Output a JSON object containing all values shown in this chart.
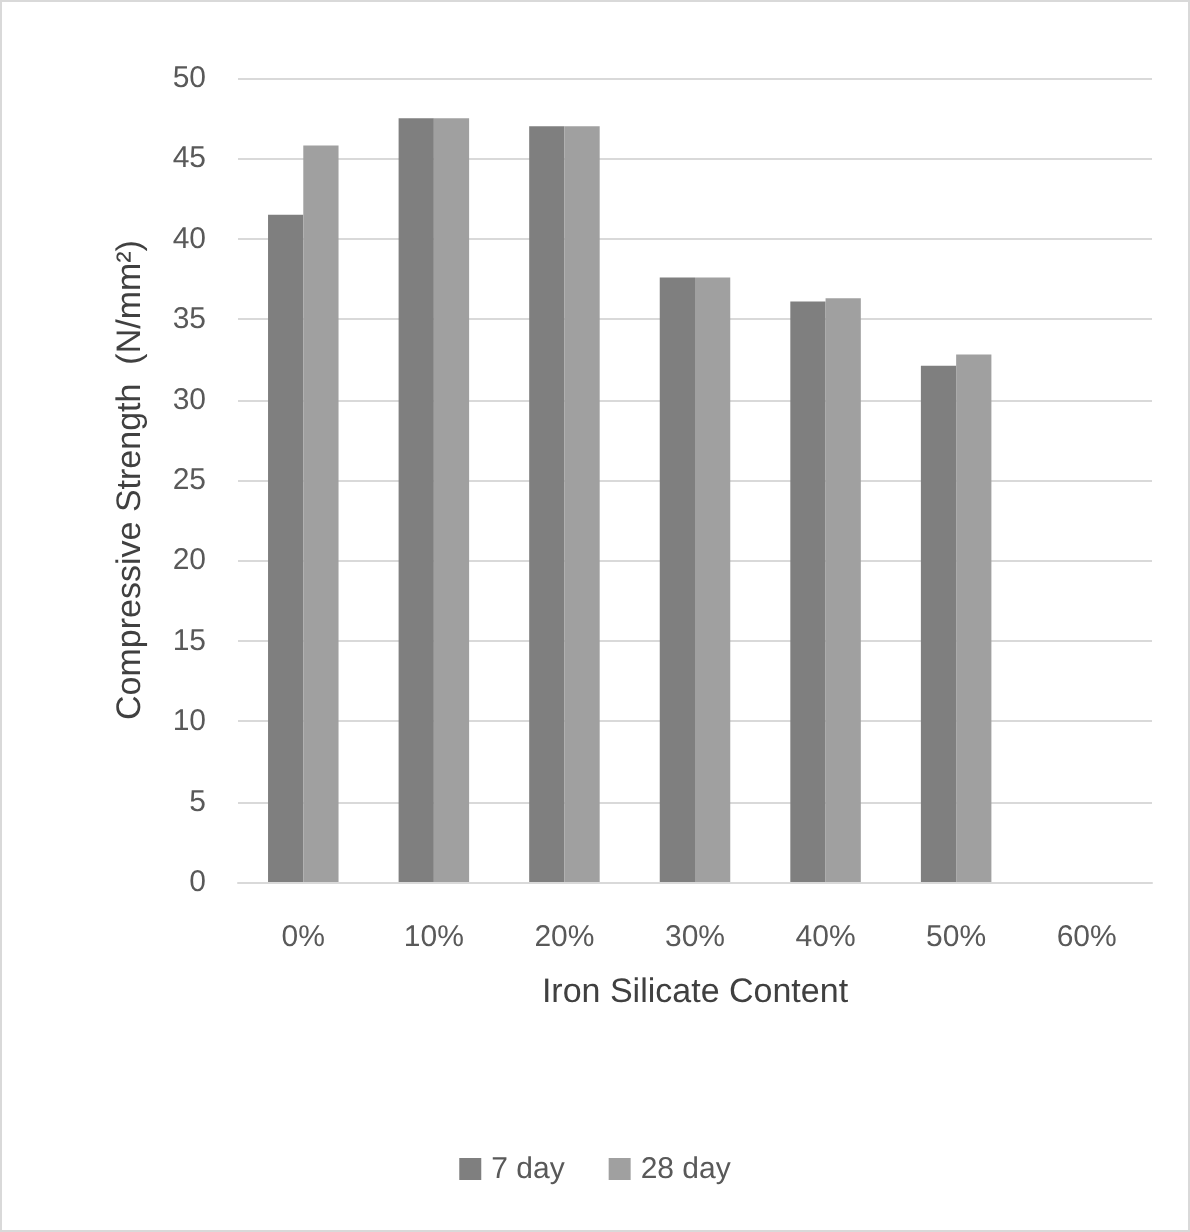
{
  "chart_data": {
    "type": "bar",
    "xlabel": "Iron Silicate Content",
    "ylabel": "Compressive Strength  (N/mm²)",
    "categories": [
      "0%",
      "10%",
      "20%",
      "30%",
      "40%",
      "50%",
      "60%"
    ],
    "series": [
      {
        "name": "7 day",
        "color": "#7f7f7f",
        "values": [
          41.5,
          47.5,
          47.0,
          37.6,
          36.1,
          32.1,
          null
        ]
      },
      {
        "name": "28 day",
        "color": "#a0a0a0",
        "values": [
          45.8,
          47.5,
          47.0,
          37.6,
          36.3,
          32.8,
          null
        ]
      }
    ],
    "ylim": [
      0,
      50
    ],
    "yticks": [
      0,
      5,
      10,
      15,
      20,
      25,
      30,
      35,
      40,
      45,
      50
    ],
    "grid": "y",
    "legend": "bottom"
  }
}
